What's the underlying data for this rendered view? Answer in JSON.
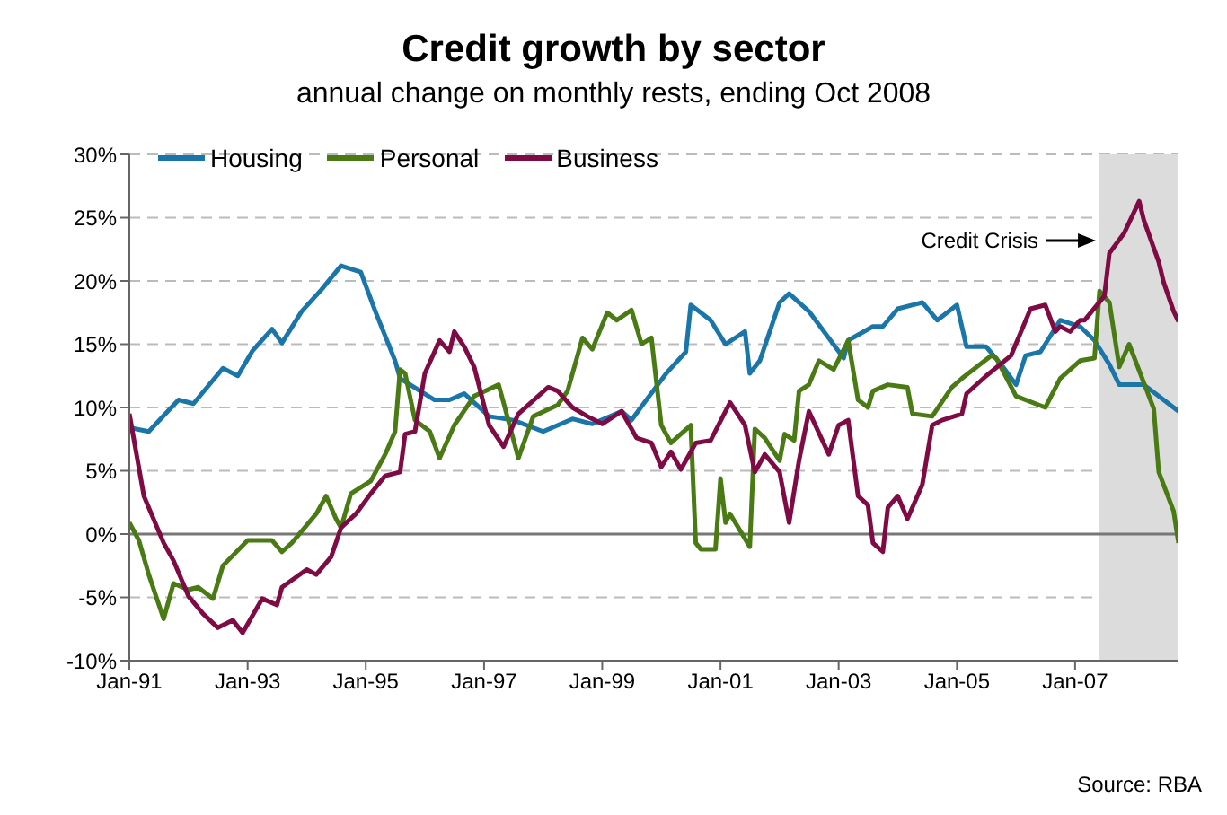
{
  "chart_data": {
    "type": "line",
    "title": "Credit growth by sector",
    "subtitle": "annual change on monthly rests, ending Oct 2008",
    "annotations": [
      "Source: RBA"
    ],
    "xlim": [
      "1991-01",
      "2008-10"
    ],
    "xticks": [
      {
        "value": "1991-01",
        "label": "Jan-91"
      },
      {
        "value": "1993-01",
        "label": "Jan-93"
      },
      {
        "value": "1995-01",
        "label": "Jan-95"
      },
      {
        "value": "1997-01",
        "label": "Jan-97"
      },
      {
        "value": "1999-01",
        "label": "Jan-99"
      },
      {
        "value": "2001-01",
        "label": "Jan-01"
      },
      {
        "value": "2003-01",
        "label": "Jan-03"
      },
      {
        "value": "2005-01",
        "label": "Jan-05"
      },
      {
        "value": "2007-01",
        "label": "Jan-07"
      }
    ],
    "ylim": [
      -10,
      30
    ],
    "yticks": [
      {
        "value": -10,
        "label": "-10%"
      },
      {
        "value": -5,
        "label": "-5%"
      },
      {
        "value": 0,
        "label": "0%"
      },
      {
        "value": 5,
        "label": "5%"
      },
      {
        "value": 10,
        "label": "10%"
      },
      {
        "value": 15,
        "label": "15%"
      },
      {
        "value": 20,
        "label": "20%"
      },
      {
        "value": 25,
        "label": "25%"
      },
      {
        "value": 30,
        "label": "30%"
      }
    ],
    "grid": "y",
    "legend": "top left",
    "marker": "none",
    "line_style": "solid",
    "bands": [
      {
        "axis": "x",
        "from": "2007-06",
        "to": "2008-10",
        "label": "Credit Crisis",
        "color": "#dcdcdc"
      }
    ],
    "series": [
      {
        "name": "Housing",
        "color": "#1a75a8",
        "x": [
          "1991-01",
          "1991-05",
          "1991-11",
          "1992-02",
          "1992-08",
          "1992-11",
          "1993-02",
          "1993-06",
          "1993-08",
          "1993-12",
          "1994-04",
          "1994-08",
          "1994-12",
          "1995-03",
          "1995-07",
          "1995-08",
          "1996-03",
          "1996-06",
          "1996-09",
          "1997-02",
          "1997-07",
          "1998-01",
          "1998-07",
          "1998-11",
          "1999-05",
          "1999-07",
          "1999-10",
          "2000-02",
          "2000-06",
          "2000-07",
          "2000-11",
          "2001-02",
          "2001-06",
          "2001-07",
          "2001-09",
          "2002-01",
          "2002-03",
          "2002-07",
          "2003-02",
          "2003-03",
          "2003-08",
          "2003-10",
          "2004-01",
          "2004-06",
          "2004-09",
          "2005-01",
          "2005-03",
          "2005-07",
          "2005-10",
          "2006-01",
          "2006-03",
          "2006-06",
          "2006-10",
          "2007-02",
          "2007-05",
          "2007-08",
          "2007-10",
          "2008-03",
          "2008-07",
          "2008-10"
        ],
        "values": [
          8.4,
          8.1,
          10.6,
          10.3,
          13.1,
          12.5,
          14.5,
          16.2,
          15.1,
          17.6,
          19.3,
          21.2,
          20.7,
          17.6,
          13.7,
          12.3,
          10.6,
          10.6,
          11.1,
          9.3,
          9.0,
          8.1,
          9.1,
          8.7,
          9.7,
          9.0,
          10.6,
          12.7,
          14.4,
          18.1,
          16.9,
          15.0,
          16.0,
          12.7,
          13.7,
          18.3,
          19.0,
          17.6,
          13.9,
          15.3,
          16.4,
          16.4,
          17.8,
          18.3,
          16.9,
          18.1,
          14.8,
          14.8,
          13.4,
          11.8,
          14.1,
          14.4,
          16.9,
          16.4,
          15.3,
          13.4,
          11.8,
          11.8,
          10.6,
          9.7
        ]
      },
      {
        "name": "Personal",
        "color": "#4a7a14",
        "x": [
          "1991-01",
          "1991-03",
          "1991-05",
          "1991-08",
          "1991-10",
          "1992-01",
          "1992-03",
          "1992-06",
          "1992-08",
          "1993-01",
          "1993-06",
          "1993-08",
          "1993-10",
          "1994-03",
          "1994-05",
          "1994-07",
          "1994-08",
          "1994-10",
          "1995-02",
          "1995-05",
          "1995-07",
          "1995-08",
          "1995-09",
          "1995-11",
          "1996-02",
          "1996-04",
          "1996-07",
          "1996-11",
          "1997-04",
          "1997-05",
          "1997-08",
          "1997-11",
          "1998-04",
          "1998-06",
          "1998-09",
          "1998-11",
          "1999-02",
          "1999-04",
          "1999-07",
          "1999-09",
          "1999-11",
          "2000-01",
          "2000-03",
          "2000-07",
          "2000-08",
          "2000-09",
          "2000-12",
          "2001-01",
          "2001-02",
          "2001-03",
          "2001-07",
          "2001-08",
          "2001-10",
          "2002-01",
          "2002-02",
          "2002-04",
          "2002-05",
          "2002-07",
          "2002-09",
          "2002-12",
          "2003-03",
          "2003-05",
          "2003-07",
          "2003-08",
          "2003-11",
          "2004-03",
          "2004-04",
          "2004-08",
          "2004-12",
          "2005-02",
          "2005-08",
          "2005-09",
          "2006-01",
          "2006-07",
          "2006-10",
          "2007-02",
          "2007-05",
          "2007-06",
          "2007-08",
          "2007-10",
          "2007-12",
          "2008-05",
          "2008-06",
          "2008-09",
          "2008-10"
        ],
        "values": [
          0.9,
          -0.5,
          -3.2,
          -6.7,
          -3.9,
          -4.4,
          -4.2,
          -5.1,
          -2.5,
          -0.5,
          -0.5,
          -1.4,
          -0.7,
          1.6,
          3.0,
          1.2,
          0.5,
          3.2,
          4.2,
          6.3,
          8.1,
          13.0,
          12.7,
          9.0,
          8.1,
          6.0,
          8.6,
          10.9,
          11.8,
          10.4,
          6.0,
          9.3,
          10.2,
          11.3,
          15.5,
          14.6,
          17.5,
          16.9,
          17.7,
          15.0,
          15.5,
          8.6,
          7.2,
          8.6,
          -0.7,
          -1.2,
          -1.2,
          4.4,
          0.9,
          1.6,
          -1.0,
          8.3,
          7.6,
          5.8,
          7.9,
          7.4,
          11.3,
          11.8,
          13.7,
          13.0,
          15.3,
          10.6,
          10.0,
          11.3,
          11.8,
          11.6,
          9.5,
          9.3,
          11.6,
          12.3,
          14.1,
          13.9,
          10.9,
          10.0,
          12.3,
          13.7,
          13.9,
          19.2,
          18.3,
          13.2,
          15.0,
          9.9,
          4.9,
          1.8,
          -0.7
        ]
      },
      {
        "name": "Business",
        "color": "#7f0b45",
        "x": [
          "1991-01",
          "1991-04",
          "1991-08",
          "1991-10",
          "1992-01",
          "1992-04",
          "1992-07",
          "1992-10",
          "1992-12",
          "1993-04",
          "1993-07",
          "1993-08",
          "1994-01",
          "1994-03",
          "1994-06",
          "1994-08",
          "1994-11",
          "1995-02",
          "1995-05",
          "1995-08",
          "1995-09",
          "1995-11",
          "1996-01",
          "1996-04",
          "1996-06",
          "1996-07",
          "1996-09",
          "1996-11",
          "1997-02",
          "1997-05",
          "1997-08",
          "1997-12",
          "1998-02",
          "1998-04",
          "1998-07",
          "1998-10",
          "1999-01",
          "1999-05",
          "1999-08",
          "1999-11",
          "2000-01",
          "2000-03",
          "2000-05",
          "2000-08",
          "2000-11",
          "2001-03",
          "2001-06",
          "2001-08",
          "2001-10",
          "2002-01",
          "2002-03",
          "2002-05",
          "2002-07",
          "2002-11",
          "2003-01",
          "2003-03",
          "2003-05",
          "2003-07",
          "2003-08",
          "2003-10",
          "2003-11",
          "2004-01",
          "2004-03",
          "2004-06",
          "2004-08",
          "2004-10",
          "2005-02",
          "2005-03",
          "2005-07",
          "2005-12",
          "2006-04",
          "2006-07",
          "2006-09",
          "2006-10",
          "2006-12",
          "2007-02",
          "2007-03",
          "2007-07",
          "2007-08",
          "2007-11",
          "2008-02",
          "2008-03",
          "2008-06",
          "2008-07",
          "2008-09",
          "2008-10"
        ],
        "values": [
          9.5,
          3.0,
          -0.7,
          -2.1,
          -4.9,
          -6.3,
          -7.4,
          -6.8,
          -7.8,
          -5.1,
          -5.6,
          -4.2,
          -2.8,
          -3.2,
          -1.8,
          0.5,
          1.6,
          3.2,
          4.6,
          4.9,
          7.9,
          8.1,
          12.7,
          15.3,
          14.4,
          16.0,
          14.8,
          13.2,
          8.6,
          6.9,
          9.5,
          10.9,
          11.6,
          11.3,
          10.0,
          9.3,
          8.7,
          9.7,
          7.6,
          7.2,
          5.3,
          6.5,
          5.1,
          7.2,
          7.4,
          10.4,
          8.6,
          4.9,
          6.3,
          4.9,
          0.9,
          5.8,
          9.7,
          6.3,
          8.6,
          9.0,
          3.0,
          2.3,
          -0.7,
          -1.4,
          2.1,
          3.0,
          1.2,
          3.9,
          8.6,
          9.0,
          9.5,
          11.1,
          12.5,
          14.1,
          17.8,
          18.1,
          16.0,
          16.4,
          16.0,
          16.9,
          16.9,
          18.8,
          22.2,
          23.8,
          26.3,
          24.8,
          21.5,
          19.9,
          17.6,
          16.8
        ]
      }
    ]
  }
}
